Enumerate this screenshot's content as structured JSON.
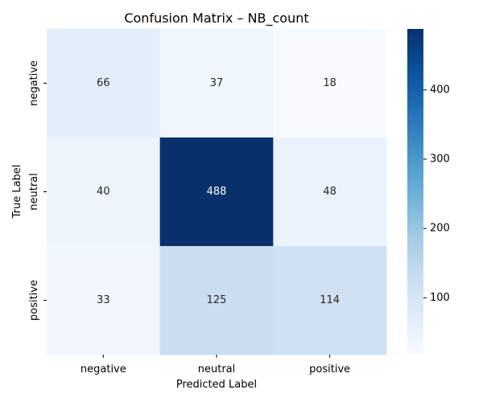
{
  "chart_data": {
    "type": "heatmap",
    "title": "Confusion Matrix – NB_count",
    "xlabel": "Predicted Label",
    "ylabel": "True Label",
    "x_categories": [
      "negative",
      "neutral",
      "positive"
    ],
    "y_categories": [
      "negative",
      "neutral",
      "positive"
    ],
    "values": [
      [
        66,
        37,
        18
      ],
      [
        40,
        488,
        48
      ],
      [
        33,
        125,
        114
      ]
    ],
    "colormap": "Blues",
    "color_range": [
      18,
      488
    ],
    "colorbar_ticks": [
      100,
      200,
      300,
      400
    ],
    "grid": false
  }
}
